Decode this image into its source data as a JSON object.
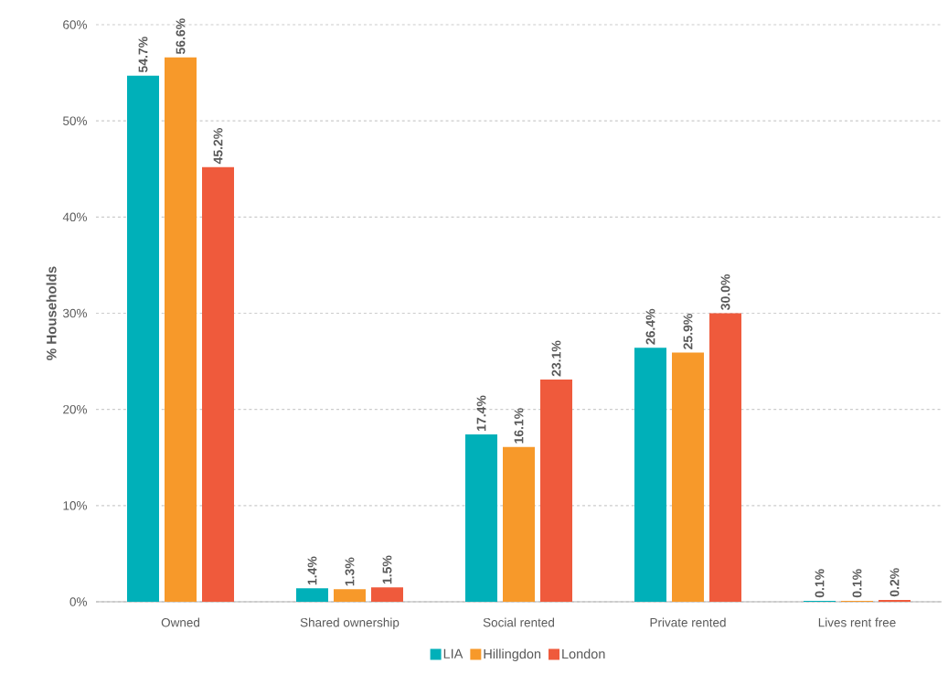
{
  "chart_data": {
    "type": "bar",
    "ylabel": "% Households",
    "categories": [
      "Owned",
      "Shared ownership",
      "Social rented",
      "Private rented",
      "Lives rent free"
    ],
    "series": [
      {
        "name": "LIA",
        "color": "#00b0b9",
        "values": [
          54.7,
          1.4,
          17.4,
          26.4,
          0.1
        ],
        "value_labels": [
          "54.7%",
          "1.4%",
          "17.4%",
          "26.4%",
          "0.1%"
        ]
      },
      {
        "name": "Hillingdon",
        "color": "#f7992a",
        "values": [
          56.6,
          1.3,
          16.1,
          25.9,
          0.1
        ],
        "value_labels": [
          "56.6%",
          "1.3%",
          "16.1%",
          "25.9%",
          "0.1%"
        ]
      },
      {
        "name": "London",
        "color": "#ef5a3c",
        "values": [
          45.2,
          1.5,
          23.1,
          30.0,
          0.2
        ],
        "value_labels": [
          "45.2%",
          "1.5%",
          "23.1%",
          "30.0%",
          "0.2%"
        ]
      }
    ],
    "ylim": [
      0,
      60
    ],
    "yticks": [
      {
        "value": 0,
        "label": "0%"
      },
      {
        "value": 10,
        "label": "10%"
      },
      {
        "value": 20,
        "label": "20%"
      },
      {
        "value": 30,
        "label": "30%"
      },
      {
        "value": 40,
        "label": "40%"
      },
      {
        "value": 50,
        "label": "50%"
      },
      {
        "value": 60,
        "label": "60%"
      }
    ],
    "grid": "y",
    "legend": "bottom"
  }
}
